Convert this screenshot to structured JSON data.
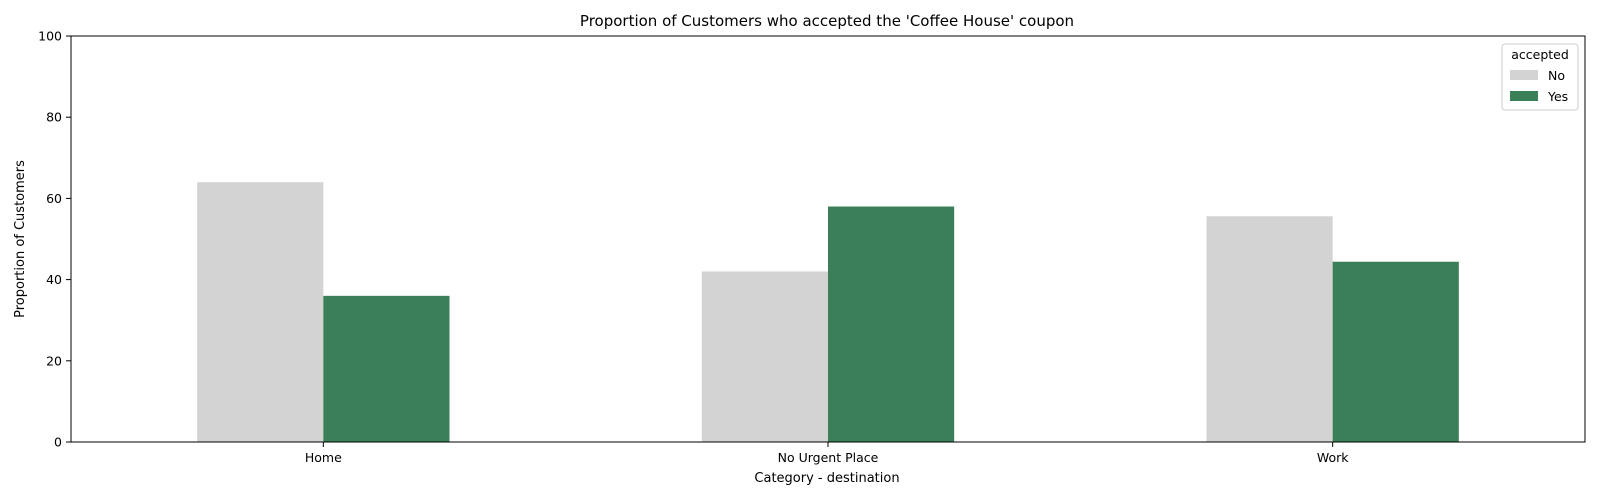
{
  "chart_data": {
    "type": "bar",
    "title": "Proportion of Customers who accepted the 'Coffee House' coupon",
    "xlabel": "Category - destination",
    "ylabel": "Proportion of Customers",
    "categories": [
      "Home",
      "No Urgent Place",
      "Work"
    ],
    "series": [
      {
        "name": "No",
        "color": "#d3d3d3",
        "values": [
          64.0,
          42.0,
          55.6
        ]
      },
      {
        "name": "Yes",
        "color": "#3a7f58",
        "values": [
          36.0,
          58.0,
          44.4
        ]
      }
    ],
    "ylim": [
      0,
      100
    ],
    "yticks": [
      0,
      20,
      40,
      60,
      80,
      100
    ],
    "grid": false,
    "legend": {
      "title": "accepted",
      "placement": "top-right"
    }
  }
}
